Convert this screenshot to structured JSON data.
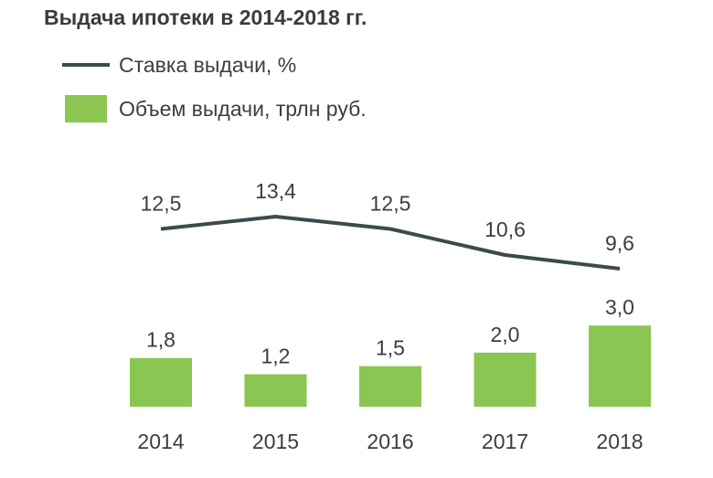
{
  "chart_data": {
    "type": "bar",
    "title": "Выдача ипотеки в 2014-2018 гг.",
    "categories": [
      "2014",
      "2015",
      "2016",
      "2017",
      "2018"
    ],
    "series": [
      {
        "name": "Ставка выдачи, %",
        "type": "line",
        "values": [
          12.5,
          13.4,
          12.5,
          10.6,
          9.6
        ],
        "labels": [
          "12,5",
          "13,4",
          "12,5",
          "10,6",
          "9,6"
        ]
      },
      {
        "name": "Объем выдачи, трлн руб.",
        "type": "bar",
        "values": [
          1.8,
          1.2,
          1.5,
          2.0,
          3.0
        ],
        "labels": [
          "1,8",
          "1,2",
          "1,5",
          "2,0",
          "3,0"
        ]
      }
    ],
    "legend_position": "top-left",
    "grid": false
  },
  "colors": {
    "bar": "#8cc652",
    "line": "#3c4a4f"
  }
}
